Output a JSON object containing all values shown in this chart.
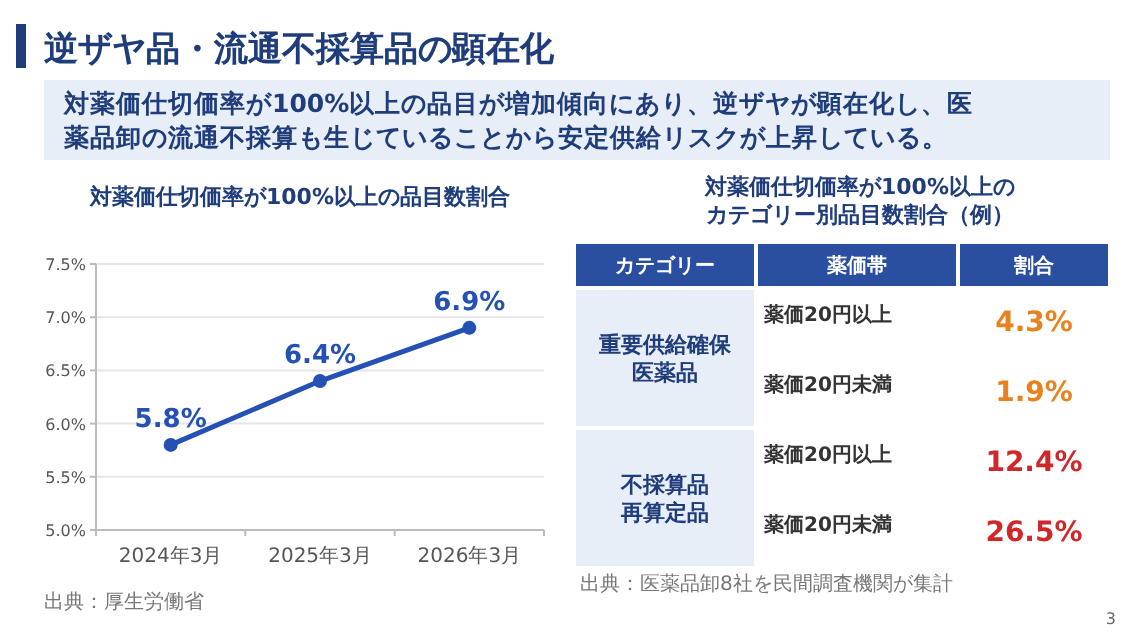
{
  "chart_data": [
    {
      "type": "other",
      "title": "逆ザヤ品・流通不採算品の顕在化",
      "subtitle": "対薬価仕切価率が100%以上の品目が増加傾向にあり、逆ザヤが顕在化し、医薬品卸の流通不採算も生じていることから安定供給リスクが上昇している。",
      "annotations": [
        "3"
      ]
    },
    {
      "type": "line",
      "title": "対薬価仕切価率が100%以上の品目数割合",
      "categories": [
        "2024年3月",
        "2025年3月",
        "2026年3月"
      ],
      "series": [
        {
          "color": "#2451b3",
          "values": [
            5.8,
            6.4,
            6.9
          ],
          "value_labels": [
            "5.8%",
            "6.4%",
            "6.9%"
          ]
        }
      ],
      "ylim": [
        5,
        7.5
      ],
      "yticks": [
        {
          "value": 5,
          "label": "5.0%"
        },
        {
          "value": 5.5,
          "label": "5.5%"
        },
        {
          "value": 6,
          "label": "6.0%"
        },
        {
          "value": 6.5,
          "label": "6.5%"
        },
        {
          "value": 7,
          "label": "7.0%"
        },
        {
          "value": 7.5,
          "label": "7.5%"
        }
      ],
      "grid": "y",
      "marker": "circle",
      "annotations": [
        "出典：厚生労働省"
      ]
    },
    {
      "type": "other",
      "title": "対薬価仕切価率が100%以上のカテゴリー別品目数割合（例）",
      "y2label": "カテゴリー",
      "xlabel": "薬価帯",
      "ylabel": "割合",
      "categories": [
        "薬価20円以上",
        "薬価20円未満",
        "薬価20円以上",
        "薬価20円未満"
      ],
      "y2_categories": [
        "重要供給確保医薬品",
        null,
        "不採算品再算定品",
        null
      ],
      "value_labels": [
        "4.3%",
        "1.9%",
        "12.4%",
        "26.5%"
      ],
      "colors": [
        "#e8821e",
        "#e8821e",
        "#d0282a",
        "#d0282a"
      ],
      "annotations": [
        "出典：医薬品卸8社を民間調査機関が集計"
      ]
    }
  ]
}
